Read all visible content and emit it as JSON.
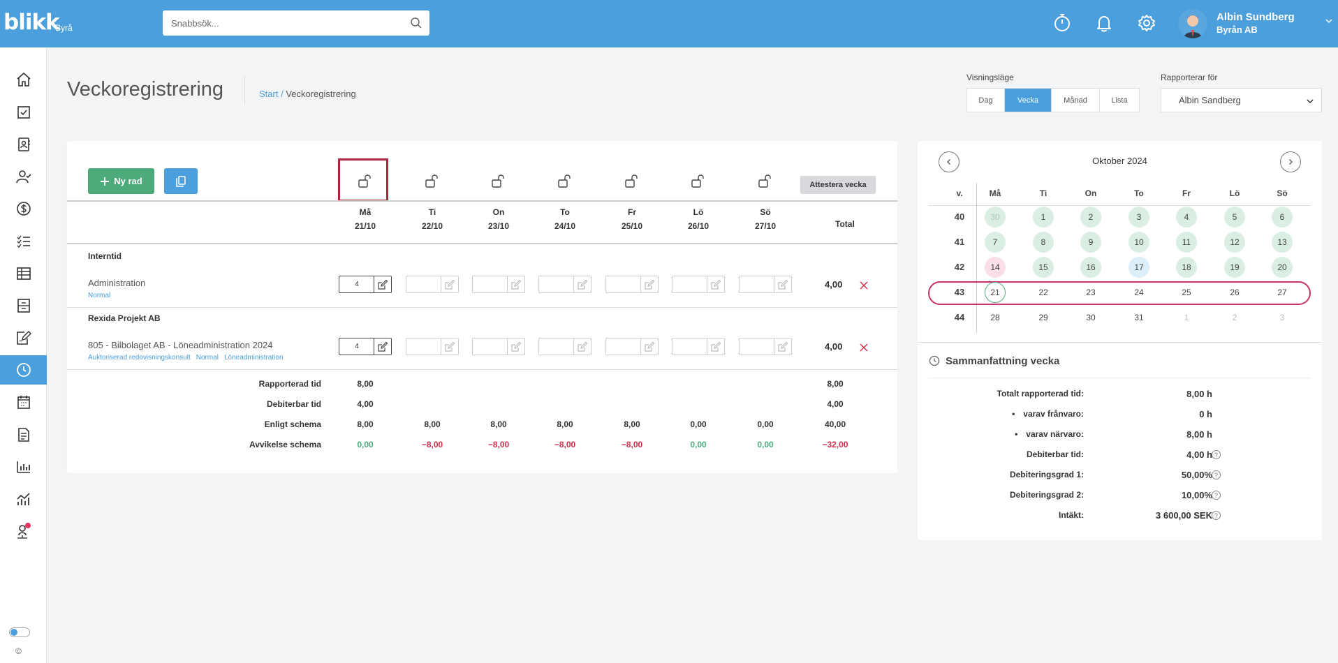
{
  "brand": {
    "logo": "blikk",
    "sub": "Byrå"
  },
  "search": {
    "placeholder": "Snabbsök..."
  },
  "user": {
    "name": "Albin Sundberg",
    "org": "Byrån AB"
  },
  "header": {
    "title": "Veckoregistrering",
    "breadcrumb_link": "Start",
    "breadcrumb_sep": " / ",
    "breadcrumb_current": "Veckoregistrering"
  },
  "view_mode": {
    "label": "Visningsläge",
    "options": [
      "Dag",
      "Vecka",
      "Månad",
      "Lista"
    ],
    "selected": "Vecka"
  },
  "reporter": {
    "label": "Rapporterar för",
    "value": "Albin Sandberg"
  },
  "toolbar": {
    "new_row_label": "Ny rad",
    "attest_label": "Attestera vecka"
  },
  "days": [
    {
      "name": "Må",
      "date": "21/10"
    },
    {
      "name": "Ti",
      "date": "22/10"
    },
    {
      "name": "On",
      "date": "23/10"
    },
    {
      "name": "To",
      "date": "24/10"
    },
    {
      "name": "Fr",
      "date": "25/10"
    },
    {
      "name": "Lö",
      "date": "26/10"
    },
    {
      "name": "Sö",
      "date": "27/10"
    }
  ],
  "total_label": "Total",
  "groups": [
    {
      "name": "Interntid",
      "rows": [
        {
          "name": "Administration",
          "tags": [
            "Normal"
          ],
          "values": [
            "4",
            "",
            "",
            "",
            "",
            "",
            ""
          ],
          "total": "4,00"
        }
      ]
    },
    {
      "name": "Rexida Projekt AB",
      "rows": [
        {
          "name": "805 - Bilbolaget AB - Löneadministration 2024",
          "tags": [
            "Auktoriserad redovisningskonsult",
            "Normal",
            "Löneadministration"
          ],
          "values": [
            "4",
            "",
            "",
            "",
            "",
            "",
            ""
          ],
          "total": "4,00"
        }
      ]
    }
  ],
  "summary": [
    {
      "label": "Rapporterad tid",
      "values": [
        "8,00",
        "",
        "",
        "",
        "",
        "",
        ""
      ],
      "total": "8,00"
    },
    {
      "label": "Debiterbar tid",
      "values": [
        "4,00",
        "",
        "",
        "",
        "",
        "",
        ""
      ],
      "total": "4,00"
    },
    {
      "label": "Enligt schema",
      "values": [
        "8,00",
        "8,00",
        "8,00",
        "8,00",
        "8,00",
        "0,00",
        "0,00"
      ],
      "total": "40,00"
    },
    {
      "label": "Avvikelse schema",
      "values": [
        "0,00",
        "−8,00",
        "−8,00",
        "−8,00",
        "−8,00",
        "0,00",
        "0,00"
      ],
      "total": "−32,00"
    }
  ],
  "calendar": {
    "title": "Oktober 2024",
    "week_label": "v.",
    "headers": [
      "Må",
      "Ti",
      "On",
      "To",
      "Fr",
      "Lö",
      "Sö"
    ],
    "weeks": [
      {
        "week": "40",
        "days": [
          "30",
          "1",
          "2",
          "3",
          "4",
          "5",
          "6"
        ]
      },
      {
        "week": "41",
        "days": [
          "7",
          "8",
          "9",
          "10",
          "11",
          "12",
          "13"
        ]
      },
      {
        "week": "42",
        "days": [
          "14",
          "15",
          "16",
          "17",
          "18",
          "19",
          "20"
        ]
      },
      {
        "week": "43",
        "days": [
          "21",
          "22",
          "23",
          "24",
          "25",
          "26",
          "27"
        ]
      },
      {
        "week": "44",
        "days": [
          "28",
          "29",
          "30",
          "31",
          "1",
          "2",
          "3"
        ]
      }
    ],
    "selected_week": "43"
  },
  "week_summary": {
    "title": "Sammanfattning vecka",
    "items": [
      {
        "label": "Totalt rapporterad tid:",
        "value": "8,00 h"
      },
      {
        "label": "varav frånvaro:",
        "value": "0 h"
      },
      {
        "label": "varav närvaro:",
        "value": "8,00 h"
      },
      {
        "label": "Debiterbar tid:",
        "value": "4,00 h"
      },
      {
        "label": "Debiteringsgrad 1:",
        "value": "50,00%"
      },
      {
        "label": "Debiteringsgrad 2:",
        "value": "10,00%"
      },
      {
        "label": "Intäkt:",
        "value": "3 600,00 SEK"
      }
    ],
    "help_glyph": "?"
  },
  "footer": {
    "copyright": "©"
  },
  "colors": {
    "primary": "#4a9fdc",
    "success": "#4dab7b",
    "danger": "#d0304a",
    "highlight": "#a9233a",
    "week_ring": "#c8316a"
  }
}
